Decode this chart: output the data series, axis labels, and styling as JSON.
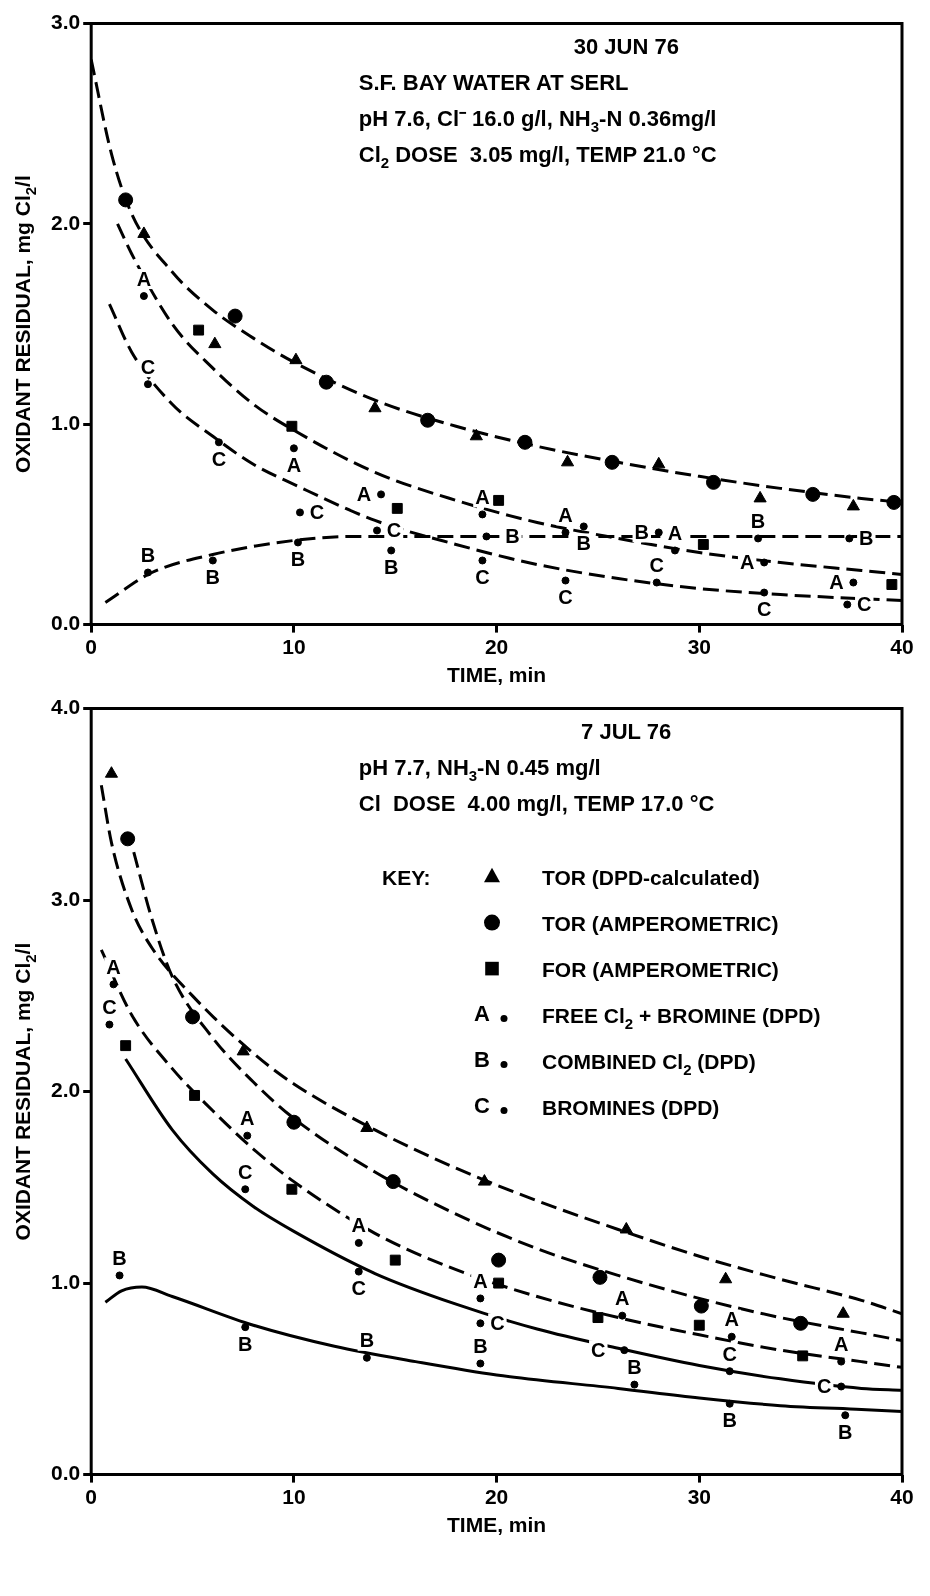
{
  "chart_data": [
    {
      "type": "scatter",
      "title": "30 JUN 76",
      "annotations": [
        "S.F. BAY WATER AT SERL",
        "pH 7.6, Cl⁻ 16.0 g/l, NH$_{3}$-N 0.36mg/l",
        "Cl$_{2}$ DOSE  3.05 mg/l, TEMP 21.0 °C"
      ],
      "xlabel": "TIME, min",
      "ylabel": "OXIDANT RESIDUAL, mg Cl$_{2}$/l",
      "xlim": [
        0,
        40
      ],
      "xticks": [
        0,
        10,
        20,
        30,
        40
      ],
      "ylim": [
        0,
        3
      ],
      "yticks": [
        {
          "value": 0,
          "label": "0.0"
        },
        {
          "value": 1,
          "label": "1.0"
        },
        {
          "value": 2,
          "label": "2.0"
        },
        {
          "value": 3,
          "label": "3.0"
        }
      ],
      "grid": false,
      "legend": false,
      "series": [
        {
          "type": "line",
          "color": "#000000",
          "marker": "none",
          "line_style": "dashed",
          "x": [
            0,
            1,
            2,
            4,
            6,
            8,
            10,
            14,
            18,
            22,
            26,
            30,
            34,
            38,
            40
          ],
          "values": [
            2.82,
            2.35,
            2.05,
            1.76,
            1.57,
            1.43,
            1.31,
            1.12,
            0.99,
            0.89,
            0.81,
            0.74,
            0.68,
            0.63,
            0.61
          ]
        },
        {
          "type": "line",
          "color": "#000000",
          "marker": "none",
          "line_style": "dashed",
          "x": [
            1.3,
            2,
            4,
            6,
            8,
            10,
            14,
            18,
            22,
            26,
            30,
            34,
            38,
            40
          ],
          "values": [
            2.0,
            1.85,
            1.5,
            1.28,
            1.1,
            0.97,
            0.76,
            0.62,
            0.51,
            0.43,
            0.36,
            0.31,
            0.27,
            0.25
          ]
        },
        {
          "type": "line",
          "color": "#000000",
          "marker": "none",
          "line_style": "dashed",
          "x": [
            0.9,
            2,
            4,
            6,
            8,
            10,
            14,
            18,
            22,
            26,
            30,
            34,
            40
          ],
          "values": [
            1.6,
            1.36,
            1.1,
            0.94,
            0.8,
            0.7,
            0.52,
            0.4,
            0.3,
            0.23,
            0.18,
            0.15,
            0.12
          ]
        },
        {
          "type": "line",
          "color": "#000000",
          "marker": "none",
          "line_style": "dashed",
          "x": [
            0.7,
            3,
            6,
            10,
            13,
            20,
            40
          ],
          "values": [
            0.11,
            0.26,
            0.35,
            0.42,
            0.44,
            0.44,
            0.44
          ]
        },
        {
          "type": "scatter",
          "color": "#000000",
          "marker": "triangle",
          "x": [
            2.6,
            6.1,
            10.1,
            14.0,
            19.0,
            23.5,
            28.0,
            33.0,
            37.6
          ],
          "values": [
            1.95,
            1.4,
            1.32,
            1.08,
            0.94,
            0.81,
            0.8,
            0.63,
            0.59
          ]
        },
        {
          "type": "scatter",
          "color": "#000000",
          "marker": "circle",
          "x": [
            1.7,
            7.1,
            11.6,
            16.6,
            21.4,
            25.7,
            30.7,
            35.6,
            39.6
          ],
          "values": [
            2.12,
            1.54,
            1.21,
            1.02,
            0.91,
            0.81,
            0.71,
            0.65,
            0.61
          ]
        },
        {
          "type": "scatter",
          "color": "#000000",
          "marker": "square",
          "x": [
            5.3,
            9.9,
            15.1,
            20.1,
            30.2,
            39.5
          ],
          "values": [
            1.47,
            0.99,
            0.58,
            0.62,
            0.4,
            0.2
          ]
        },
        {
          "type": "scatter",
          "color": "#000000",
          "x": [
            2.6,
            10.0,
            14.3,
            19.3,
            23.4,
            28.8,
            33.2,
            37.6
          ],
          "values": [
            1.64,
            0.88,
            0.65,
            0.55,
            0.46,
            0.37,
            0.31,
            0.21
          ],
          "value_labels": [
            "A",
            "A",
            "A",
            "A",
            "A",
            "A",
            "A",
            "A"
          ]
        },
        {
          "type": "scatter",
          "color": "#000000",
          "x": [
            2.8,
            6.0,
            10.2,
            14.8,
            19.5,
            24.3,
            28.0,
            32.9,
            37.4
          ],
          "values": [
            0.26,
            0.32,
            0.41,
            0.37,
            0.44,
            0.49,
            0.46,
            0.43,
            0.43
          ],
          "value_labels": [
            "B",
            "B",
            "B",
            "B",
            "B",
            "B",
            "B",
            "B",
            "B"
          ]
        },
        {
          "type": "scatter",
          "color": "#000000",
          "x": [
            2.8,
            6.3,
            10.3,
            14.1,
            19.3,
            23.4,
            27.9,
            33.2,
            37.3
          ],
          "values": [
            1.2,
            0.91,
            0.56,
            0.47,
            0.32,
            0.22,
            0.21,
            0.16,
            0.1
          ],
          "value_labels": [
            "C",
            "C",
            "C",
            "C",
            "C",
            "C",
            "C",
            "C",
            "C"
          ]
        }
      ]
    },
    {
      "type": "scatter",
      "title": "7 JUL 76",
      "annotations": [
        "pH 7.7, NH$_{3}$-N 0.45 mg/l",
        "Cl  DOSE  4.00 mg/l, TEMP 17.0 °C"
      ],
      "xlabel": "TIME, min",
      "ylabel": "OXIDANT RESIDUAL, mg Cl$_{2}$/l",
      "xlim": [
        0,
        40
      ],
      "xticks": [
        0,
        10,
        20,
        30,
        40
      ],
      "ylim": [
        0,
        4
      ],
      "yticks": [
        {
          "value": 0,
          "label": "0.0"
        },
        {
          "value": 1,
          "label": "1.0"
        },
        {
          "value": 2,
          "label": "2.0"
        },
        {
          "value": 3,
          "label": "3.0"
        },
        {
          "value": 4,
          "label": "4.0"
        }
      ],
      "grid": false,
      "legend": "top right",
      "legend_title": "KEY:",
      "series": [
        {
          "type": "line",
          "color": "#000000",
          "marker": "none",
          "line_style": "dashed",
          "x": [
            0.5,
            1,
            2,
            3,
            5,
            8,
            10,
            14,
            18,
            22,
            26,
            30,
            34,
            38,
            40
          ],
          "values": [
            3.6,
            3.3,
            2.95,
            2.75,
            2.5,
            2.2,
            2.04,
            1.8,
            1.6,
            1.43,
            1.28,
            1.14,
            1.02,
            0.91,
            0.84
          ]
        },
        {
          "type": "line",
          "color": "#000000",
          "marker": "none",
          "line_style": "dashed",
          "x": [
            2.1,
            3,
            4,
            6,
            8,
            10,
            14,
            18,
            22,
            26,
            30,
            34,
            38,
            40
          ],
          "values": [
            3.25,
            2.9,
            2.6,
            2.28,
            2.05,
            1.86,
            1.58,
            1.36,
            1.18,
            1.04,
            0.92,
            0.82,
            0.74,
            0.7
          ]
        },
        {
          "type": "line",
          "color": "#000000",
          "marker": "none",
          "line_style": "dashed",
          "x": [
            0.5,
            2,
            4,
            6,
            8,
            10,
            14,
            18,
            22,
            26,
            30,
            34,
            38,
            40
          ],
          "values": [
            2.74,
            2.4,
            2.12,
            1.9,
            1.7,
            1.53,
            1.26,
            1.07,
            0.93,
            0.82,
            0.73,
            0.65,
            0.59,
            0.56
          ]
        },
        {
          "type": "line",
          "color": "#000000",
          "marker": "none",
          "line_style": "solid",
          "x": [
            1.7,
            4,
            6,
            8,
            10,
            14,
            18,
            22,
            26,
            30,
            34,
            38,
            40
          ],
          "values": [
            2.17,
            1.8,
            1.57,
            1.4,
            1.27,
            1.05,
            0.89,
            0.76,
            0.66,
            0.57,
            0.5,
            0.45,
            0.44
          ]
        },
        {
          "type": "line",
          "color": "#000000",
          "marker": "none",
          "line_style": "solid",
          "x": [
            0.7,
            1.5,
            2.5,
            4,
            8,
            12,
            16,
            20,
            26,
            30,
            34,
            38,
            40
          ],
          "values": [
            0.9,
            0.96,
            0.98,
            0.93,
            0.78,
            0.67,
            0.59,
            0.52,
            0.45,
            0.4,
            0.36,
            0.34,
            0.33
          ]
        },
        {
          "type": "scatter",
          "name": "TOR (DPD-calculated)",
          "color": "#000000",
          "marker": "triangle",
          "x": [
            1.0,
            7.5,
            13.6,
            19.4,
            26.4,
            31.3,
            37.1
          ],
          "values": [
            3.66,
            2.21,
            1.81,
            1.53,
            1.28,
            1.02,
            0.84
          ]
        },
        {
          "type": "scatter",
          "name": "TOR (AMPEROMETRIC)",
          "color": "#000000",
          "marker": "circle",
          "x": [
            1.8,
            5.0,
            10.0,
            14.9,
            20.1,
            25.1,
            30.1,
            35.0
          ],
          "values": [
            3.32,
            2.39,
            1.84,
            1.53,
            1.12,
            1.03,
            0.88,
            0.79
          ]
        },
        {
          "type": "scatter",
          "name": "FOR (AMPEROMETRIC)",
          "color": "#000000",
          "marker": "square",
          "x": [
            1.7,
            5.1,
            9.9,
            15.0,
            20.1,
            25.0,
            30.0,
            35.1
          ],
          "values": [
            2.24,
            1.98,
            1.49,
            1.12,
            1.0,
            0.82,
            0.78,
            0.62
          ]
        },
        {
          "type": "scatter",
          "name": "FREE Cl$_{2}$ + BROMINE (DPD)",
          "color": "#000000",
          "x": [
            1.1,
            7.7,
            13.2,
            19.2,
            26.2,
            31.6,
            37.0
          ],
          "values": [
            2.56,
            1.77,
            1.21,
            0.92,
            0.83,
            0.72,
            0.59
          ],
          "value_labels": [
            "A",
            "A",
            "A",
            "A",
            "A",
            "A",
            "A"
          ]
        },
        {
          "type": "scatter",
          "name": "COMBINED Cl$_{2}$ (DPD)",
          "color": "#000000",
          "x": [
            1.4,
            7.6,
            13.6,
            19.2,
            26.8,
            31.5,
            37.2
          ],
          "values": [
            1.04,
            0.77,
            0.61,
            0.58,
            0.47,
            0.37,
            0.31
          ],
          "value_labels": [
            "B",
            "B",
            "B",
            "B",
            "B",
            "B",
            "B"
          ]
        },
        {
          "type": "scatter",
          "name": "BROMINES (DPD)",
          "color": "#000000",
          "x": [
            0.9,
            7.6,
            13.2,
            19.2,
            26.3,
            31.5,
            37.0
          ],
          "values": [
            2.35,
            1.49,
            1.06,
            0.79,
            0.65,
            0.54,
            0.46
          ],
          "value_labels": [
            "C",
            "C",
            "C",
            "C",
            "C",
            "C",
            "C"
          ]
        }
      ]
    }
  ]
}
